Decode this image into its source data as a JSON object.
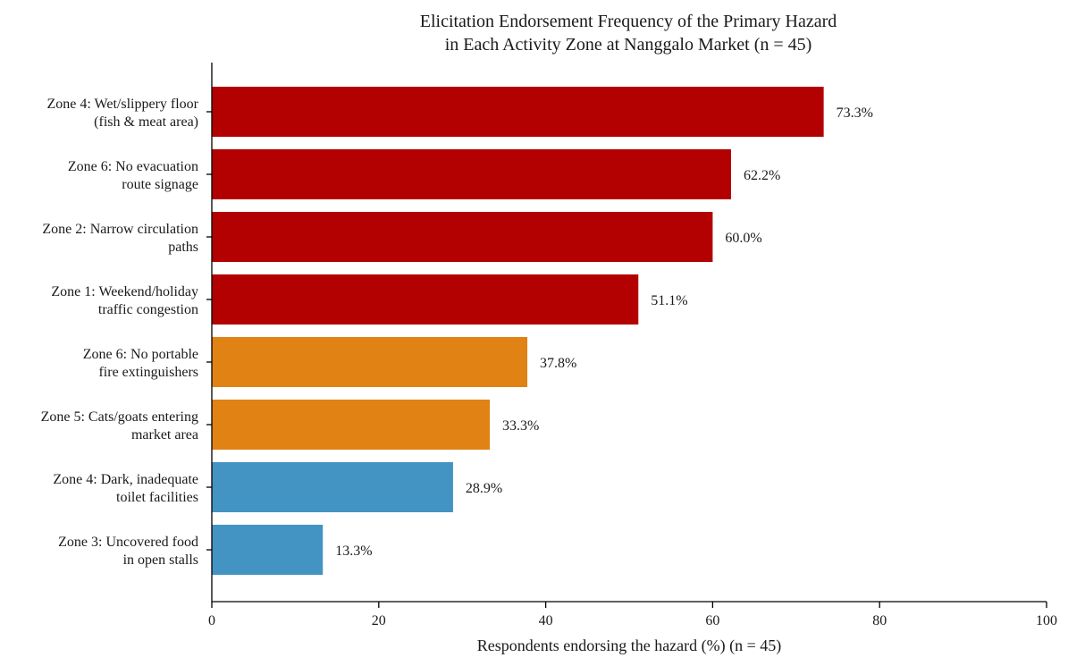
{
  "chart_data": {
    "type": "bar",
    "orientation": "horizontal",
    "title": [
      "Elicitation Endorsement Frequency of the Primary Hazard",
      "in Each Activity Zone at Nanggalo Market (n = 45)"
    ],
    "xlabel": "Respondents endorsing the hazard (%) (n = 45)",
    "ylabel": "",
    "xlim": [
      0,
      100
    ],
    "xticks": [
      0,
      20,
      40,
      60,
      80,
      100
    ],
    "grid": false,
    "categories": [
      [
        "Zone 4: Wet/slippery floor",
        "(fish & meat area)"
      ],
      [
        "Zone 6: No evacuation",
        "route signage"
      ],
      [
        "Zone 2: Narrow circulation",
        "paths"
      ],
      [
        "Zone 1: Weekend/holiday",
        "traffic congestion"
      ],
      [
        "Zone 6: No portable",
        "fire extinguishers"
      ],
      [
        "Zone 5: Cats/goats entering",
        "market area"
      ],
      [
        "Zone 4: Dark, inadequate",
        "toilet facilities"
      ],
      [
        "Zone 3: Uncovered food",
        "in open stalls"
      ]
    ],
    "values": [
      73.3,
      62.2,
      60.0,
      51.1,
      37.8,
      33.3,
      28.9,
      13.3
    ],
    "value_labels": [
      "73.3%",
      "62.2%",
      "60.0%",
      "51.1%",
      "37.8%",
      "33.3%",
      "28.9%",
      "13.3%"
    ],
    "bar_colors": [
      "#b30000",
      "#b30000",
      "#b30000",
      "#b30000",
      "#e08214",
      "#e08214",
      "#4393c3",
      "#4393c3"
    ]
  }
}
